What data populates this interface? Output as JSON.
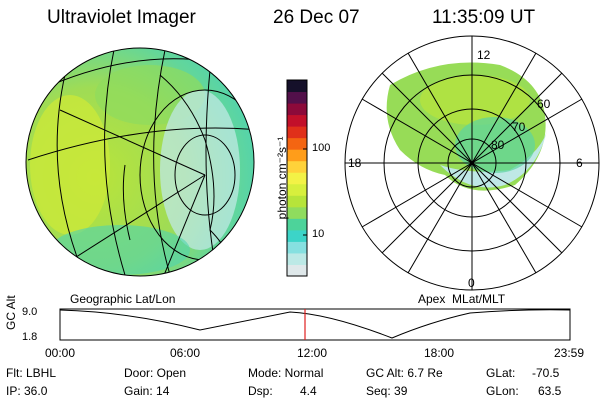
{
  "header": {
    "instrument": "Ultraviolet Imager",
    "date": "26 Dec 07",
    "time": "11:35:09 UT"
  },
  "colorbar": {
    "unit_label": "photon cm⁻²s⁻¹",
    "ticks": [
      "100",
      "10"
    ],
    "colors": [
      "#dfe8ea",
      "#bce9e6",
      "#86e0e0",
      "#3cd4c8",
      "#4dd39a",
      "#8fdc5e",
      "#b6e43a",
      "#d7ef3d",
      "#f3f246",
      "#ffd23a",
      "#ff9d1a",
      "#f46512",
      "#e0301a",
      "#c2102a",
      "#8c0a3a",
      "#52104a",
      "#15102a"
    ]
  },
  "left_panel": {
    "caption": "Geographic Lat/Lon"
  },
  "right_panel": {
    "caption": "Apex  MLat/MLT",
    "lat_labels": [
      "80",
      "70",
      "60"
    ],
    "mlt_labels": {
      "top": "12",
      "bottom": "0",
      "left": "18",
      "right": "6"
    }
  },
  "timeline": {
    "ylabel": "GC Alt",
    "y_ticks": [
      "9.0",
      "1.8"
    ],
    "x_ticks": [
      "00:00",
      "06:00",
      "12:00",
      "18:00",
      "23:59"
    ],
    "marker_time": "11:35"
  },
  "footer": {
    "filter": "Flt: LBHL",
    "ip": "IP: 36.0",
    "door": "Door: Open",
    "gain": "Gain: 14",
    "mode": "Mode: Normal",
    "dsp_label": "Dsp:",
    "dsp_value": "4.4",
    "gc_alt": "GC Alt: 6.7 Re",
    "seq": "Seq: 39",
    "glat_label": "GLat:",
    "glat_value": "-70.5",
    "glon_label": "GLon:",
    "glon_value": "63.5"
  }
}
